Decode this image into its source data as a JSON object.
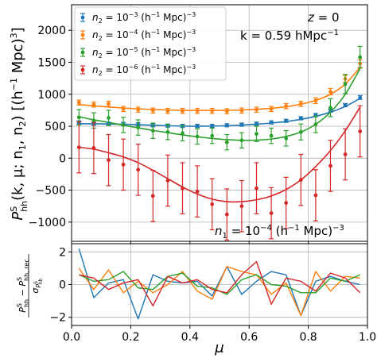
{
  "chart_data": [
    {
      "type": "scatter",
      "panel": "top",
      "xlabel": "",
      "ylabel": "P^S_hh(k, μ; n1, n2) [(h^-1 Mpc)^3]",
      "ylabel_parts": {
        "main": "P",
        "sub": "hh",
        "sup": "S",
        "args": "(k, μ; n",
        "n1sub": "1",
        "sep": ", n",
        "n2sub": "2",
        "close": ")",
        "unit_open": " [(h",
        "unit_exp": "−1",
        "unit_mid": " Mpc)",
        "unit_exp2": "3",
        "unit_close": "]"
      },
      "xlim": [
        0,
        1
      ],
      "ylim": [
        -1300,
        2400
      ],
      "yticks": [
        "−1000",
        "−500",
        "0",
        "500",
        "1000",
        "1500",
        "2000"
      ],
      "ytick_values": [
        -1000,
        -500,
        0,
        500,
        1000,
        1500,
        2000
      ],
      "xticks": [
        0,
        0.2,
        0.4,
        0.6,
        0.8,
        1
      ],
      "grid": true,
      "legend_position": "upper-left",
      "annotations": {
        "z": "z = 0",
        "k_prefix": "k = 0.59 h",
        "k_unit": "Mpc",
        "k_exp": "−1",
        "n1_prefix": "n",
        "n1_sub": "1",
        "n1_eq": " = 10",
        "n1_exp": "−4",
        "n1_unit_open": " (h",
        "n1_unit_exp": "−1",
        "n1_unit_mid": " Mpc)",
        "n1_unit_exp2": "−3"
      },
      "x": [
        0.025,
        0.075,
        0.125,
        0.175,
        0.225,
        0.275,
        0.325,
        0.375,
        0.425,
        0.475,
        0.525,
        0.575,
        0.625,
        0.675,
        0.725,
        0.775,
        0.825,
        0.875,
        0.925,
        0.975
      ],
      "series": [
        {
          "name": "n2 = 10^-3 (h^-1 Mpc)^-3",
          "legend": {
            "sub": "2",
            "eq": " = 10",
            "exp": "−3",
            "unit": " (h",
            "uexp": "−1",
            "umid": " Mpc)",
            "uexp2": "−3"
          },
          "color": "#1f77b4",
          "values": [
            560,
            540,
            540,
            535,
            530,
            515,
            510,
            505,
            505,
            505,
            515,
            525,
            540,
            560,
            585,
            625,
            675,
            745,
            830,
            950
          ],
          "errors": [
            25,
            25,
            25,
            25,
            25,
            25,
            25,
            25,
            25,
            25,
            25,
            25,
            25,
            25,
            25,
            25,
            25,
            25,
            25,
            30
          ],
          "model": [
            540,
            538,
            535,
            530,
            524,
            516,
            508,
            502,
            500,
            502,
            508,
            518,
            532,
            550,
            574,
            608,
            655,
            720,
            810,
            935
          ]
        },
        {
          "name": "n2 = 10^-4 (h^-1 Mpc)^-3",
          "legend": {
            "sub": "2",
            "eq": " = 10",
            "exp": "−4",
            "unit": " (h",
            "uexp": "−1",
            "umid": " Mpc)",
            "uexp2": "−3"
          },
          "color": "#ff7f0e",
          "values": [
            870,
            840,
            850,
            770,
            760,
            745,
            740,
            740,
            740,
            740,
            735,
            745,
            760,
            770,
            815,
            850,
            900,
            1040,
            1240,
            1480
          ],
          "errors": [
            40,
            40,
            40,
            40,
            40,
            40,
            40,
            40,
            40,
            40,
            40,
            40,
            40,
            40,
            40,
            40,
            45,
            50,
            55,
            60
          ],
          "model": [
            840,
            820,
            800,
            785,
            772,
            762,
            755,
            750,
            748,
            748,
            750,
            755,
            765,
            780,
            805,
            845,
            905,
            1000,
            1160,
            1420
          ]
        },
        {
          "name": "n2 = 10^-5 (h^-1 Mpc)^-3",
          "legend": {
            "sub": "2",
            "eq": " = 10",
            "exp": "−5",
            "unit": " (h",
            "uexp": "−1",
            "umid": " Mpc)",
            "uexp2": "−3"
          },
          "color": "#2ca02c",
          "values": [
            640,
            590,
            630,
            520,
            480,
            430,
            410,
            390,
            340,
            350,
            250,
            280,
            380,
            350,
            310,
            410,
            530,
            790,
            1160,
            1580
          ],
          "errors": [
            120,
            120,
            120,
            120,
            120,
            120,
            120,
            120,
            120,
            120,
            120,
            120,
            120,
            120,
            120,
            125,
            130,
            140,
            150,
            170
          ],
          "model": [
            650,
            600,
            560,
            515,
            475,
            435,
            400,
            365,
            335,
            310,
            290,
            280,
            282,
            300,
            340,
            410,
            530,
            720,
            1000,
            1400
          ]
        },
        {
          "name": "n2 = 10^-6 (h^-1 Mpc)^-3",
          "legend": {
            "sub": "2",
            "eq": " = 10",
            "exp": "−6",
            "unit": " (h",
            "uexp": "−1",
            "umid": " Mpc)",
            "uexp2": "−3"
          },
          "color": "#d62728",
          "values": [
            170,
            160,
            -30,
            -100,
            -180,
            -590,
            -350,
            -470,
            -520,
            -720,
            -880,
            -750,
            -470,
            -860,
            -700,
            -340,
            -580,
            -120,
            60,
            420
          ],
          "errors": [
            400,
            400,
            400,
            400,
            400,
            400,
            400,
            400,
            400,
            400,
            400,
            400,
            400,
            400,
            400,
            400,
            400,
            400,
            400,
            400
          ],
          "model": [
            170,
            140,
            85,
            20,
            -70,
            -190,
            -320,
            -450,
            -560,
            -640,
            -680,
            -680,
            -650,
            -590,
            -490,
            -340,
            -130,
            120,
            430,
            800
          ]
        }
      ]
    },
    {
      "type": "line",
      "panel": "bottom",
      "xlabel": "μ",
      "ylabel": "(P^S_hh − P^S_hh,rec) / σ_P^S_hh",
      "ylabel_parts": {
        "num_a": "P",
        "num_a_sup": "S",
        "num_a_sub": "hh",
        "minus": " − ",
        "num_b": "P",
        "num_b_sup": "S",
        "num_b_sub": "hh, rec",
        "den": "σ",
        "den_sub": "P",
        "den_subsup": "S",
        "den_subsub": "hh"
      },
      "xlim": [
        0,
        1
      ],
      "ylim": [
        -2.5,
        2.5
      ],
      "yticks": [
        "−2",
        "0",
        "2"
      ],
      "ytick_values": [
        -2,
        0,
        2
      ],
      "xticks": [
        "0.0",
        "0.2",
        "0.4",
        "0.6",
        "0.8",
        "1.0"
      ],
      "xtick_values": [
        0,
        0.2,
        0.4,
        0.6,
        0.8,
        1.0
      ],
      "grid": true,
      "x": [
        0.025,
        0.075,
        0.125,
        0.175,
        0.225,
        0.275,
        0.325,
        0.375,
        0.425,
        0.475,
        0.525,
        0.575,
        0.625,
        0.675,
        0.725,
        0.775,
        0.825,
        0.875,
        0.925,
        0.975
      ],
      "series": [
        {
          "color": "#1f77b4",
          "values": [
            2.2,
            -0.8,
            0.1,
            0.3,
            -2.1,
            0.6,
            0.2,
            0.1,
            0.2,
            -0.7,
            1.1,
            -0.6,
            0.2,
            0.8,
            0.6,
            -1.9,
            0.2,
            0.5,
            0.2,
            0.0
          ]
        },
        {
          "color": "#ff7f0e",
          "values": [
            1.0,
            -0.3,
            0.9,
            -0.5,
            0.2,
            -0.5,
            0.0,
            0.8,
            -0.4,
            -0.9,
            1.1,
            0.8,
            0.6,
            -0.6,
            0.1,
            -1.9,
            0.8,
            -0.4,
            0.5,
            0.4
          ]
        },
        {
          "color": "#2ca02c",
          "values": [
            0.6,
            0.2,
            0.3,
            0.8,
            -0.2,
            -0.3,
            0.5,
            0.7,
            -0.1,
            -0.2,
            -0.6,
            0.3,
            0.6,
            0.0,
            -0.1,
            -0.5,
            -0.5,
            0.4,
            0.2,
            0.6
          ]
        },
        {
          "color": "#d62728",
          "values": [
            0.6,
            0.4,
            -0.3,
            0.1,
            0.3,
            -1.3,
            0.5,
            0.1,
            0.3,
            -0.3,
            -0.5,
            0.6,
            1.4,
            -1.2,
            0.4,
            0.2,
            -0.4,
            0.7,
            0.4,
            -0.5
          ]
        }
      ]
    }
  ]
}
